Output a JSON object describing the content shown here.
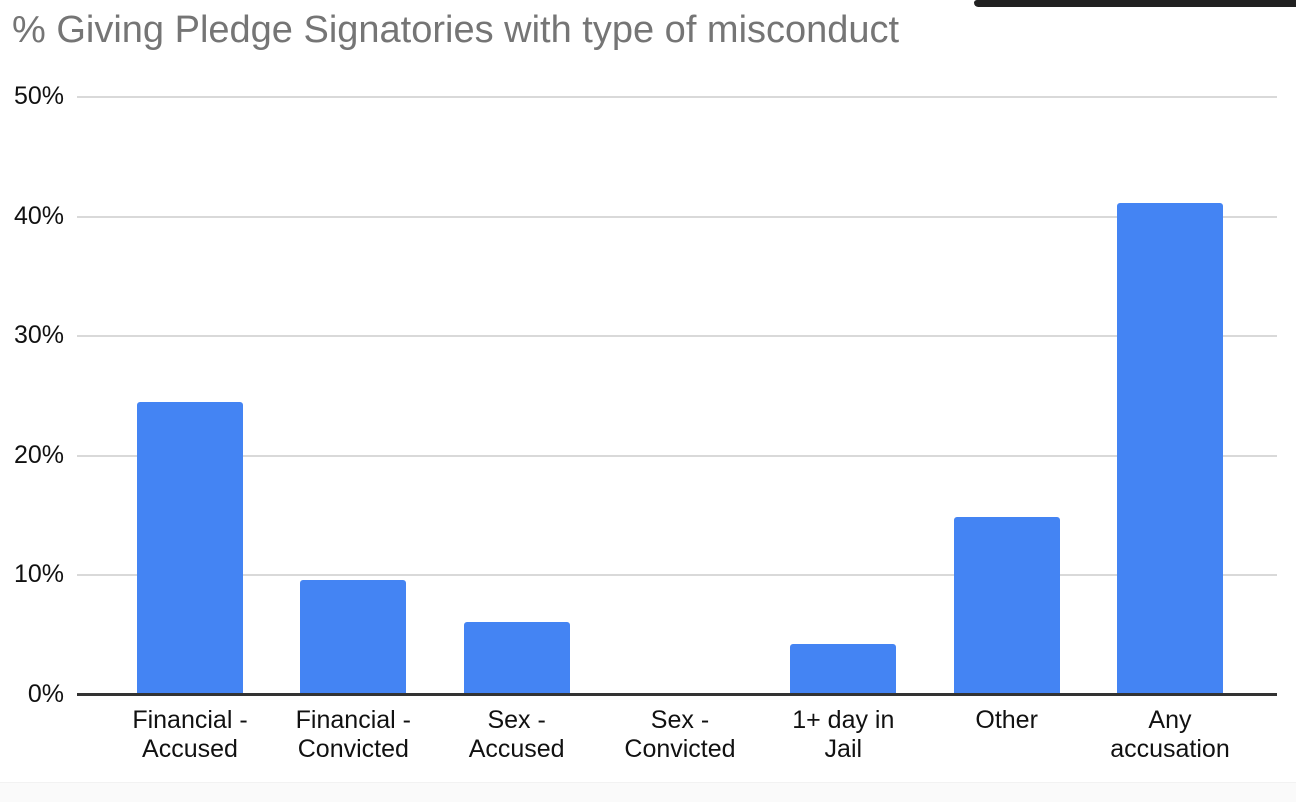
{
  "chart_data": {
    "type": "bar",
    "title": "% Giving Pledge Signatories with type of misconduct",
    "categories": [
      "Financial - Accused",
      "Financial - Convicted",
      "Sex - Accused",
      "Sex - Convicted",
      "1+ day in Jail",
      "Other",
      "Any accusation"
    ],
    "category_label_lines": [
      [
        "Financial -",
        "Accused"
      ],
      [
        "Financial -",
        "Convicted"
      ],
      [
        "Sex -",
        "Accused"
      ],
      [
        "Sex -",
        "Convicted"
      ],
      [
        "1+ day in",
        "Jail"
      ],
      [
        "Other"
      ],
      [
        "Any",
        "accusation"
      ]
    ],
    "values": [
      24.5,
      9.6,
      6.1,
      0,
      4.3,
      14.9,
      41.1
    ],
    "unit": "%",
    "xlabel": "",
    "ylabel": "",
    "ylim": [
      0,
      50
    ],
    "ytick_labels": [
      "50%",
      "40%",
      "30%",
      "20%",
      "10%",
      "0%"
    ],
    "ytick_values": [
      50,
      40,
      30,
      20,
      10,
      0
    ],
    "grid": true,
    "legend_position": "none",
    "bar_color": "#4484F3",
    "gridline_color": "#d9d9d9",
    "axis_line_color": "#333333",
    "title_color": "#757575",
    "tick_label_color": "#111111",
    "edge_strip_color": "#212121"
  }
}
